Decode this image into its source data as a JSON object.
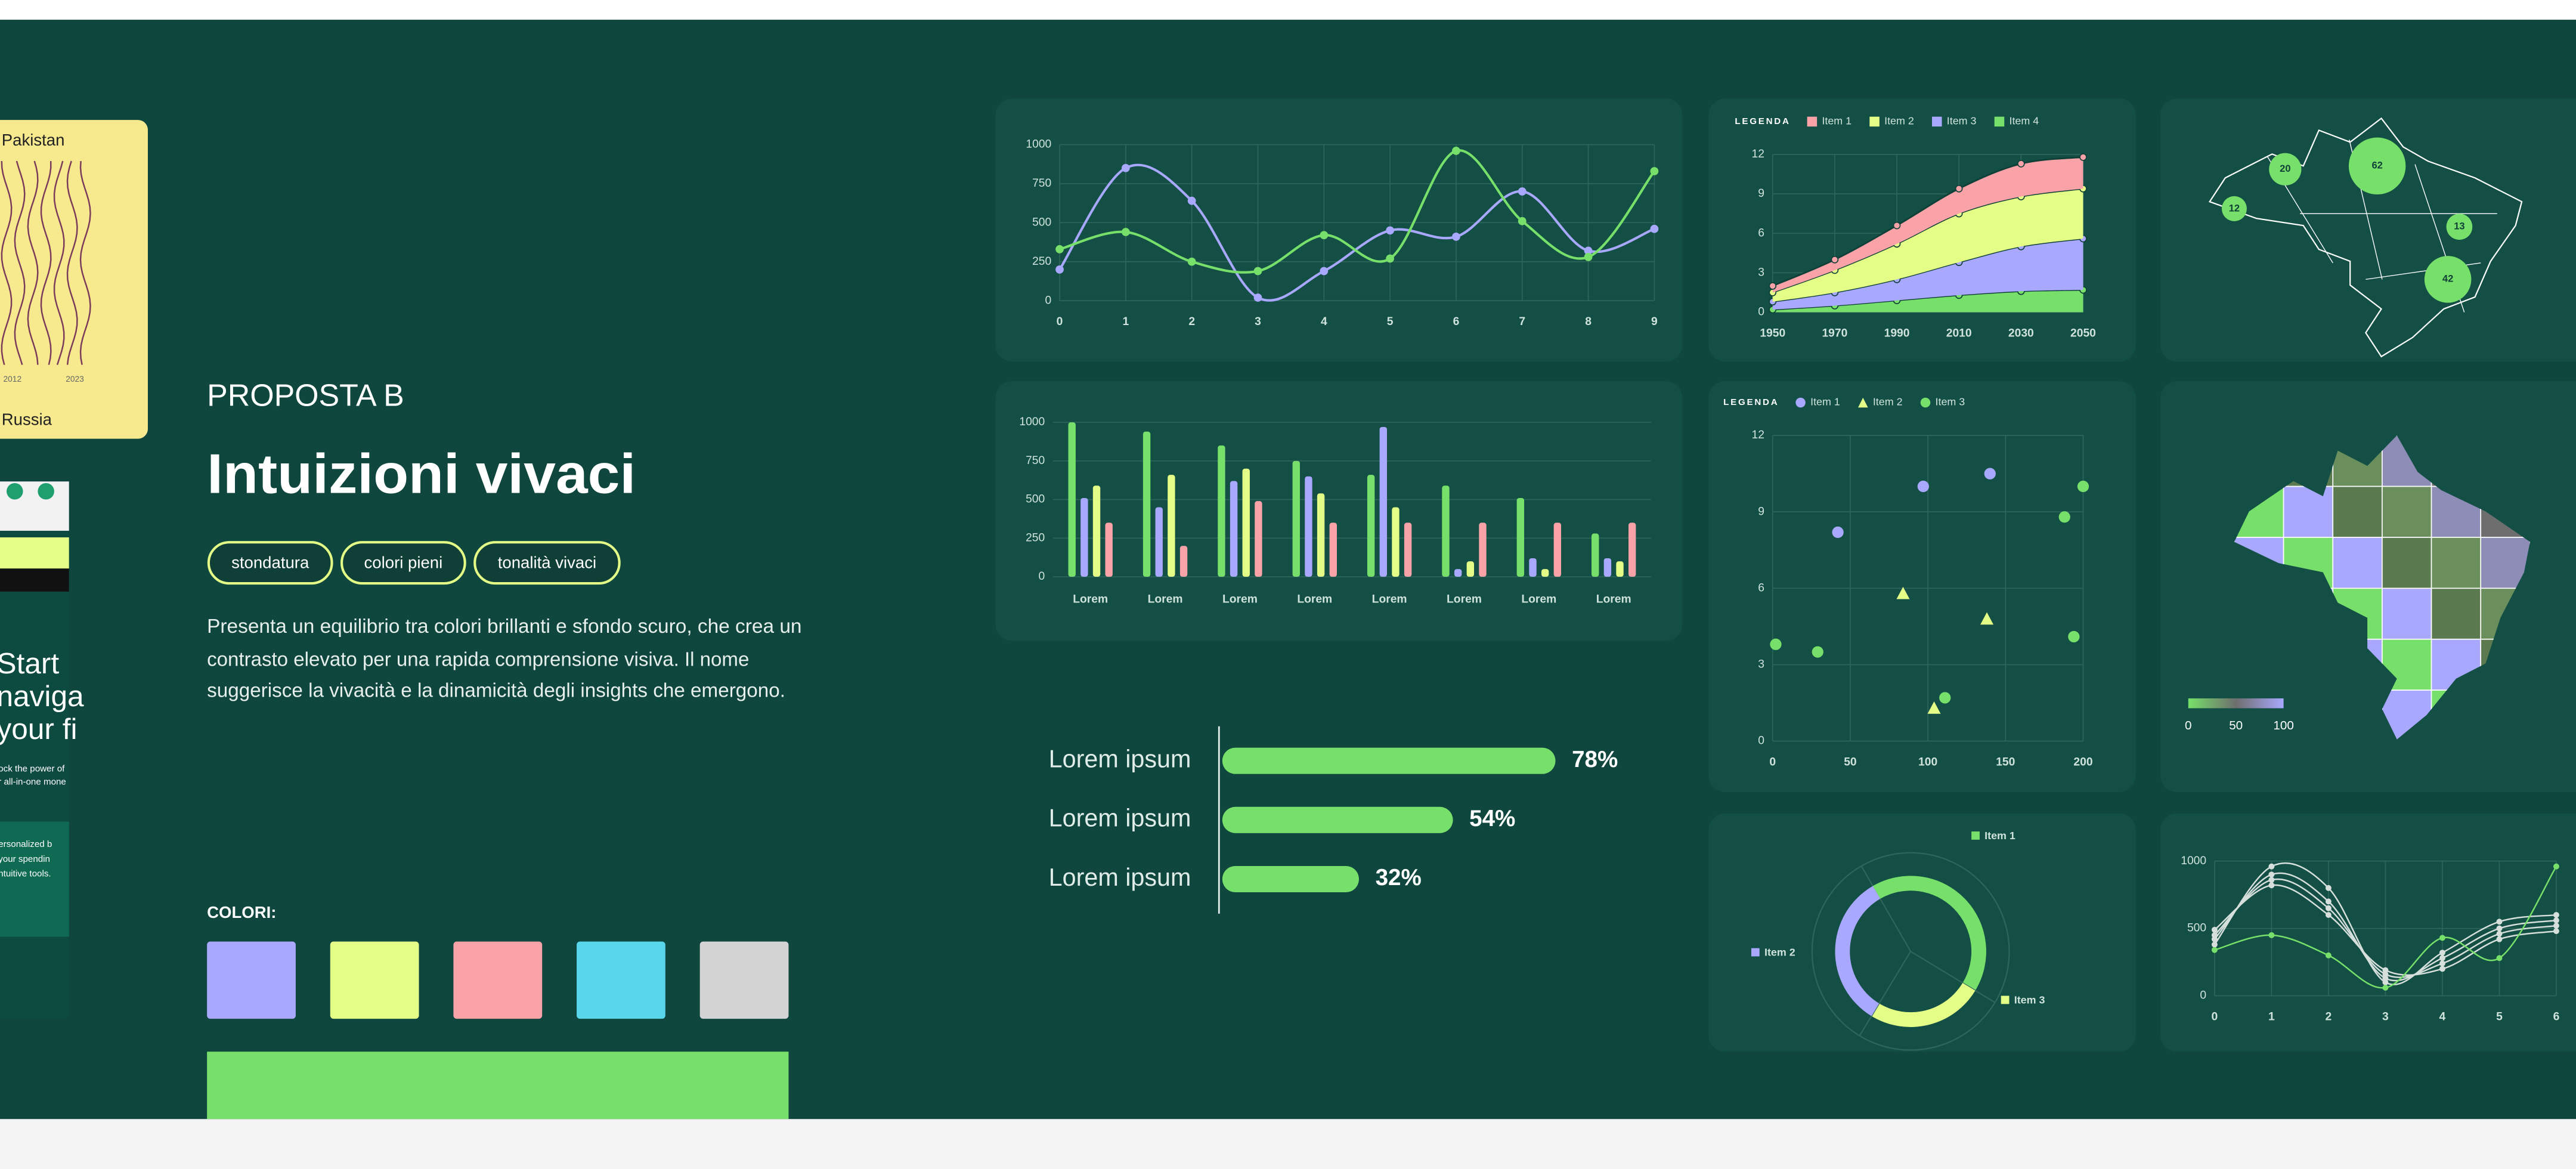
{
  "sidebar": {
    "card_top": {
      "title": "Pakistan",
      "bottom": "Russia",
      "years": [
        "2012",
        "2023"
      ]
    },
    "card_bottom": {
      "heading_lines": [
        "Start",
        "naviga",
        "your fi"
      ],
      "lines": [
        "ock the power of",
        "r all-in-one mone",
        "ersonalized b",
        "your spendin",
        "ntuitive tools."
      ]
    }
  },
  "header": {
    "eyebrow": "PROPOSTA B",
    "title": "Intuizioni vivaci"
  },
  "tags": [
    "stondatura",
    "colori pieni",
    "tonalità vivaci"
  ],
  "description": [
    "Presenta un equilibrio tra colori brillanti e sfondo scuro, che crea un",
    "contrasto elevato per una rapida comprensione visiva. Il nome",
    "suggerisce la vivacità e la dinamicità degli insights che emergono."
  ],
  "colors": {
    "label": "COLORI:",
    "swatches": [
      "#a9a8ff",
      "#e3fd86",
      "#f9a3a9",
      "#58d6ea",
      "#d3d3d3"
    ],
    "primary": "#77e06a"
  },
  "maps": {
    "bubbles": [
      20,
      62,
      12,
      13,
      42
    ],
    "legend_ticks": [
      0,
      50,
      100
    ]
  },
  "chart_data": [
    {
      "type": "line",
      "x": [
        0,
        1,
        2,
        3,
        4,
        5,
        6,
        7,
        8,
        9
      ],
      "xlim": [
        0,
        9
      ],
      "xticks": [
        0,
        1,
        2,
        3,
        4,
        5,
        6,
        7,
        8,
        9
      ],
      "ylim": [
        0,
        1000
      ],
      "yticks": [
        0,
        250,
        500,
        750,
        1000
      ],
      "grid": true,
      "series": [
        {
          "color": "#a9a8ff",
          "values": [
            200,
            850,
            640,
            20,
            190,
            450,
            410,
            700,
            320,
            460
          ]
        },
        {
          "color": "#77e06a",
          "values": [
            330,
            440,
            250,
            190,
            420,
            270,
            960,
            510,
            280,
            830
          ]
        }
      ]
    },
    {
      "type": "area",
      "stacked": true,
      "legend_title": "LEGENDA",
      "x": [
        1950,
        1970,
        1990,
        2010,
        2030,
        2050
      ],
      "xlim": [
        1950,
        2050
      ],
      "xticks": [
        1950,
        1970,
        1990,
        2010,
        2030,
        2050
      ],
      "ylim": [
        0,
        12
      ],
      "yticks": [
        0,
        3,
        6,
        9,
        12
      ],
      "grid": true,
      "series": [
        {
          "name": "Item 1",
          "color": "#f9a3a9",
          "values": [
            0.5,
            0.8,
            1.4,
            1.9,
            2.5,
            2.4
          ]
        },
        {
          "name": "Item 2",
          "color": "#e3fd86",
          "values": [
            0.7,
            1.7,
            2.7,
            3.7,
            3.8,
            3.8
          ]
        },
        {
          "name": "Item 3",
          "color": "#a9a8ff",
          "values": [
            0.6,
            1.0,
            1.6,
            2.5,
            3.4,
            3.9
          ]
        },
        {
          "name": "Item 4",
          "color": "#77e06a",
          "values": [
            0.2,
            0.5,
            0.9,
            1.3,
            1.6,
            1.7
          ]
        }
      ]
    },
    {
      "type": "bar",
      "categories": [
        "Lorem",
        "Lorem",
        "Lorem",
        "Lorem",
        "Lorem",
        "Lorem",
        "Lorem",
        "Lorem"
      ],
      "ylim": [
        0,
        1000
      ],
      "yticks": [
        0,
        250,
        500,
        750,
        1000
      ],
      "grid": true,
      "series": [
        {
          "color": "#77e06a",
          "values": [
            1000,
            940,
            850,
            750,
            660,
            590,
            510,
            280
          ]
        },
        {
          "color": "#a9a8ff",
          "values": [
            510,
            450,
            620,
            650,
            970,
            50,
            120,
            120
          ]
        },
        {
          "color": "#e3fd86",
          "values": [
            590,
            660,
            700,
            540,
            450,
            100,
            50,
            100
          ]
        },
        {
          "color": "#f9a3a9",
          "values": [
            350,
            200,
            490,
            350,
            350,
            350,
            350,
            350
          ]
        }
      ]
    },
    {
      "type": "scatter",
      "legend_title": "LEGENDA",
      "xlim": [
        0,
        200
      ],
      "xticks": [
        0,
        50,
        100,
        150,
        200
      ],
      "ylim": [
        0,
        12
      ],
      "yticks": [
        0,
        3,
        6,
        9,
        12
      ],
      "grid": true,
      "series": [
        {
          "name": "Item 1",
          "color": "#a9a8ff",
          "marker": "circle",
          "x": [
            42,
            97,
            140
          ],
          "values": [
            8.2,
            10,
            10.5
          ]
        },
        {
          "name": "Item 2",
          "color": "#e3fd86",
          "marker": "triangle",
          "x": [
            84,
            138,
            104
          ],
          "values": [
            5.8,
            4.8,
            1.3
          ]
        },
        {
          "name": "Item 3",
          "color": "#77e06a",
          "marker": "circle",
          "x": [
            2,
            29,
            111,
            188,
            200,
            194
          ],
          "values": [
            3.8,
            3.5,
            1.7,
            8.8,
            10,
            4.1
          ]
        }
      ]
    },
    {
      "type": "bar",
      "orientation": "horizontal",
      "categories": [
        "Lorem ipsum",
        "Lorem ipsum",
        "Lorem ipsum"
      ],
      "values": [
        78,
        54,
        32
      ],
      "value_labels": [
        "78%",
        "54%",
        "32%"
      ],
      "xlim": [
        0,
        100
      ],
      "color": "#77e06a"
    },
    {
      "type": "pie",
      "donut": true,
      "categories": [
        "Item 1",
        "Item 2",
        "Item 3"
      ],
      "values": [
        42,
        33,
        25
      ],
      "colors": [
        "#77e06a",
        "#a9a8ff",
        "#e3fd86"
      ]
    },
    {
      "type": "line",
      "x": [
        0,
        1,
        2,
        3,
        4,
        5,
        6
      ],
      "xlim": [
        0,
        6
      ],
      "xticks": [
        0,
        1,
        2,
        3,
        4,
        5,
        6
      ],
      "ylim": [
        0,
        1000
      ],
      "yticks": [
        0,
        500,
        1000
      ],
      "grid": true,
      "series": [
        {
          "color": "#d6dfdb",
          "values": [
            380,
            960,
            800,
            100,
            320,
            550,
            600
          ]
        },
        {
          "color": "#d6dfdb",
          "values": [
            420,
            900,
            700,
            130,
            280,
            500,
            560
          ]
        },
        {
          "color": "#d6dfdb",
          "values": [
            450,
            860,
            650,
            160,
            240,
            460,
            520
          ]
        },
        {
          "color": "#d6dfdb",
          "values": [
            490,
            820,
            600,
            190,
            200,
            420,
            480
          ]
        },
        {
          "color": "#77e06a",
          "values": [
            340,
            450,
            300,
            60,
            430,
            280,
            960
          ]
        }
      ]
    }
  ]
}
